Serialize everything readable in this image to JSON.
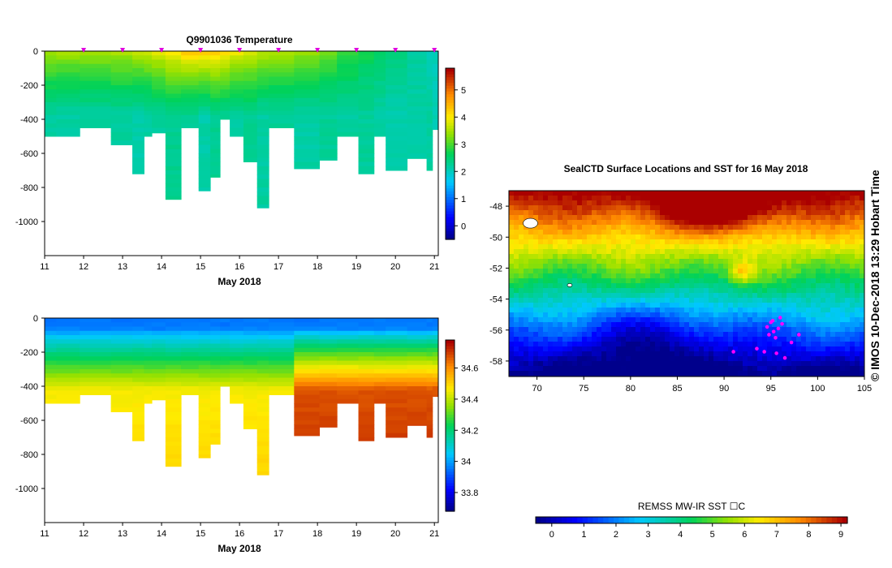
{
  "chart_data": [
    {
      "type": "section",
      "name": "temperature",
      "title": "Q9901036  Temperature",
      "xlabel": "May 2018",
      "x_ticks": [
        "11",
        "12",
        "13",
        "14",
        "15",
        "16",
        "17",
        "18",
        "19",
        "20",
        "21"
      ],
      "xlim": [
        11,
        21.1
      ],
      "y_ticks": [
        "0",
        "-200",
        "-400",
        "-600",
        "-800",
        "-1000"
      ],
      "ylim": [
        -1200,
        0
      ],
      "colorbar": {
        "ticks": [
          "0",
          "1",
          "2",
          "3",
          "4",
          "5"
        ],
        "range": [
          -0.5,
          5.8
        ]
      },
      "profile_markers_day": [
        12,
        13,
        14,
        15,
        16,
        17,
        18,
        19,
        20,
        21
      ],
      "profiles": [
        {
          "start": 11.0,
          "end": 11.3,
          "max_depth": 500
        },
        {
          "start": 11.3,
          "end": 11.9,
          "max_depth": 500
        },
        {
          "start": 11.9,
          "end": 12.7,
          "max_depth": 450
        },
        {
          "start": 12.7,
          "end": 13.25,
          "max_depth": 550
        },
        {
          "start": 13.25,
          "end": 13.55,
          "max_depth": 720
        },
        {
          "start": 13.55,
          "end": 13.75,
          "max_depth": 500
        },
        {
          "start": 13.75,
          "end": 14.1,
          "max_depth": 480
        },
        {
          "start": 14.1,
          "end": 14.5,
          "max_depth": 870
        },
        {
          "start": 14.5,
          "end": 14.95,
          "max_depth": 450
        },
        {
          "start": 14.95,
          "end": 15.25,
          "max_depth": 820
        },
        {
          "start": 15.25,
          "end": 15.5,
          "max_depth": 740
        },
        {
          "start": 15.5,
          "end": 15.75,
          "max_depth": 400
        },
        {
          "start": 15.75,
          "end": 16.1,
          "max_depth": 500
        },
        {
          "start": 16.1,
          "end": 16.45,
          "max_depth": 650
        },
        {
          "start": 16.45,
          "end": 16.75,
          "max_depth": 920
        },
        {
          "start": 16.75,
          "end": 17.4,
          "max_depth": 450
        },
        {
          "start": 17.4,
          "end": 18.05,
          "max_depth": 690
        },
        {
          "start": 18.05,
          "end": 18.5,
          "max_depth": 640
        },
        {
          "start": 18.5,
          "end": 19.05,
          "max_depth": 500
        },
        {
          "start": 19.05,
          "end": 19.45,
          "max_depth": 720
        },
        {
          "start": 19.45,
          "end": 19.75,
          "max_depth": 500
        },
        {
          "start": 19.75,
          "end": 20.3,
          "max_depth": 700
        },
        {
          "start": 20.3,
          "end": 20.8,
          "max_depth": 630
        },
        {
          "start": 20.8,
          "end": 20.95,
          "max_depth": 700
        },
        {
          "start": 20.95,
          "end": 21.1,
          "max_depth": 460
        }
      ]
    },
    {
      "type": "section",
      "name": "salinity",
      "title": "",
      "xlabel": "May 2018",
      "x_ticks": [
        "11",
        "12",
        "13",
        "14",
        "15",
        "16",
        "17",
        "18",
        "19",
        "20",
        "21"
      ],
      "xlim": [
        11,
        21.1
      ],
      "y_ticks": [
        "0",
        "-200",
        "-400",
        "-600",
        "-800",
        "-1000"
      ],
      "ylim": [
        -1200,
        0
      ],
      "colorbar": {
        "ticks": [
          "33.8",
          "34",
          "34.2",
          "34.4",
          "34.6"
        ],
        "range": [
          33.68,
          34.78
        ]
      }
    },
    {
      "type": "heatmap",
      "name": "sst_map",
      "title": "SealCTD Surface Locations and SST for 16 May 2018",
      "x_ticks": [
        "70",
        "75",
        "80",
        "85",
        "90",
        "95",
        "100",
        "105"
      ],
      "xlim": [
        67,
        105
      ],
      "y_ticks": [
        "-48",
        "-50",
        "-52",
        "-54",
        "-56",
        "-58"
      ],
      "ylim": [
        -59,
        -47
      ],
      "colorbar": {
        "label": "REMSS MW-IR SST ☐C",
        "ticks": [
          "0",
          "1",
          "2",
          "3",
          "4",
          "5",
          "6",
          "7",
          "8",
          "9"
        ],
        "range": [
          -0.5,
          9.2
        ]
      },
      "surface_locations": [
        [
          95.0,
          -55.5
        ],
        [
          95.3,
          -56.1
        ],
        [
          95.8,
          -55.9
        ],
        [
          96.2,
          -55.6
        ],
        [
          94.6,
          -55.8
        ],
        [
          95.5,
          -56.5
        ],
        [
          94.8,
          -56.3
        ],
        [
          97.2,
          -56.8
        ],
        [
          98.0,
          -56.3
        ],
        [
          96.5,
          -57.8
        ],
        [
          95.6,
          -57.5
        ],
        [
          94.3,
          -57.4
        ],
        [
          95.2,
          -55.4
        ],
        [
          93.5,
          -57.2
        ],
        [
          91.0,
          -57.4
        ],
        [
          96.0,
          -55.2
        ]
      ]
    }
  ],
  "credit": "©  IMOS 10-Dec-2018 13:29 Hobart Time"
}
